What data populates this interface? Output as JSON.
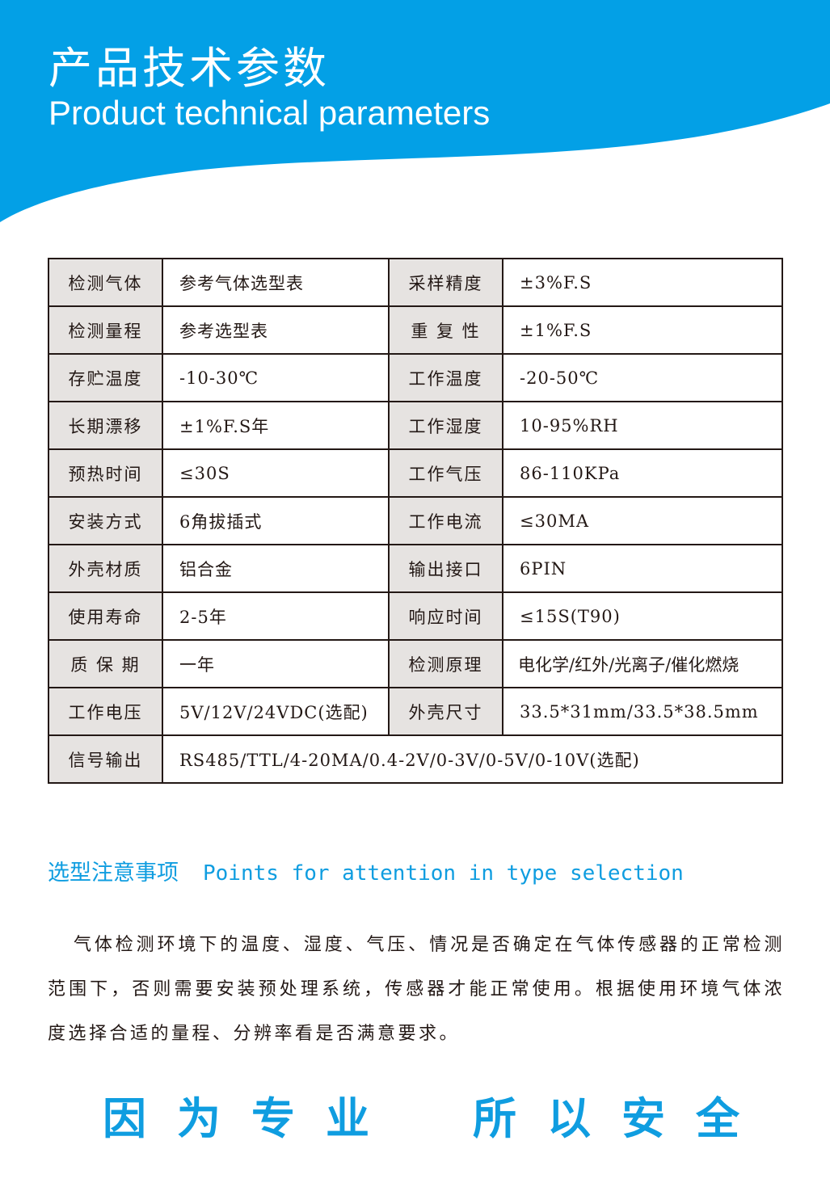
{
  "header": {
    "title_cn": "产品技术参数",
    "title_en": "Product technical parameters",
    "color": "#03a0e6"
  },
  "table": [
    [
      "检测气体",
      "参考气体选型表",
      "采样精度",
      "±3%F.S"
    ],
    [
      "检测量程",
      "参考选型表",
      "重 复 性",
      "±1%F.S"
    ],
    [
      "存贮温度",
      "-10-30℃",
      "工作温度",
      "-20-50℃"
    ],
    [
      "长期漂移",
      "±1%F.S年",
      "工作湿度",
      "10-95%RH"
    ],
    [
      "预热时间",
      "≤30S",
      "工作气压",
      "86-110KPa"
    ],
    [
      "安装方式",
      "6角拔插式",
      "工作电流",
      "≤30MA"
    ],
    [
      "外壳材质",
      "铝合金",
      "输出接口",
      "6PIN"
    ],
    [
      "使用寿命",
      "2-5年",
      "响应时间",
      "≤15S(T90)"
    ],
    [
      "质 保 期",
      "一年",
      "检测原理",
      "电化学/红外/光离子/催化燃烧"
    ],
    [
      "工作电压",
      "5V/12V/24VDC(选配)",
      "外壳尺寸",
      "33.5*31mm/33.5*38.5mm"
    ]
  ],
  "last_row": {
    "label": "信号输出",
    "value": "RS485/TTL/4-20MA/0.4-2V/0-3V/0-5V/0-10V(选配)"
  },
  "section": {
    "title_cn": "选型注意事项",
    "title_en": "Points for attention in type selection"
  },
  "paragraph": "气体检测环境下的温度、湿度、气压、情况是否确定在气体传感器的正常检测范围下，否则需要安装预处理系统，传感器才能正常使用。根据使用环境气体浓度选择合适的量程、分辨率看是否满意要求。",
  "slogan": {
    "left": "因为专业",
    "right": "所以安全"
  }
}
